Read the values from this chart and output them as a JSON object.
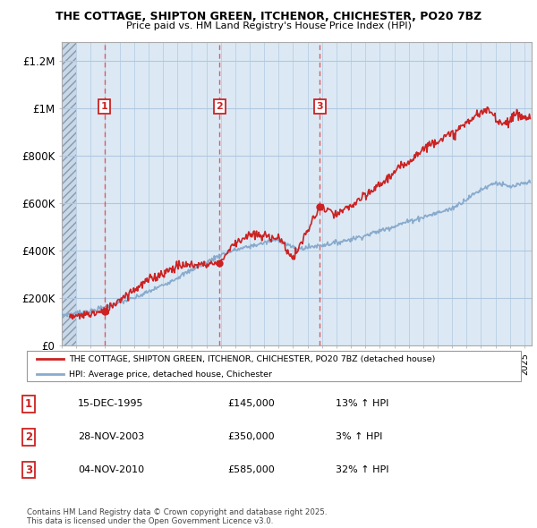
{
  "title1": "THE COTTAGE, SHIPTON GREEN, ITCHENOR, CHICHESTER, PO20 7BZ",
  "title2": "Price paid vs. HM Land Registry's House Price Index (HPI)",
  "ylabel_ticks": [
    "£0",
    "£200K",
    "£400K",
    "£600K",
    "£800K",
    "£1M",
    "£1.2M"
  ],
  "ytick_vals": [
    0,
    200000,
    400000,
    600000,
    800000,
    1000000,
    1200000
  ],
  "ymax": 1280000,
  "xmin": 1993.0,
  "xmax": 2025.5,
  "chart_bg": "#dce9f5",
  "hatch_bg": "#c8d8e8",
  "grid_color": "#b0c8e0",
  "sale_color": "#cc2222",
  "hpi_color": "#88aacc",
  "purchases": [
    {
      "num": 1,
      "date": "15-DEC-1995",
      "price": 145000,
      "year": 1995.96,
      "hpi_pct": "13%"
    },
    {
      "num": 2,
      "date": "28-NOV-2003",
      "price": 350000,
      "year": 2003.91,
      "hpi_pct": "3%"
    },
    {
      "num": 3,
      "date": "04-NOV-2010",
      "price": 585000,
      "year": 2010.84,
      "hpi_pct": "32%"
    }
  ],
  "legend_line1": "THE COTTAGE, SHIPTON GREEN, ITCHENOR, CHICHESTER, PO20 7BZ (detached house)",
  "legend_line2": "HPI: Average price, detached house, Chichester",
  "footer": "Contains HM Land Registry data © Crown copyright and database right 2025.\nThis data is licensed under the Open Government Licence v3.0."
}
